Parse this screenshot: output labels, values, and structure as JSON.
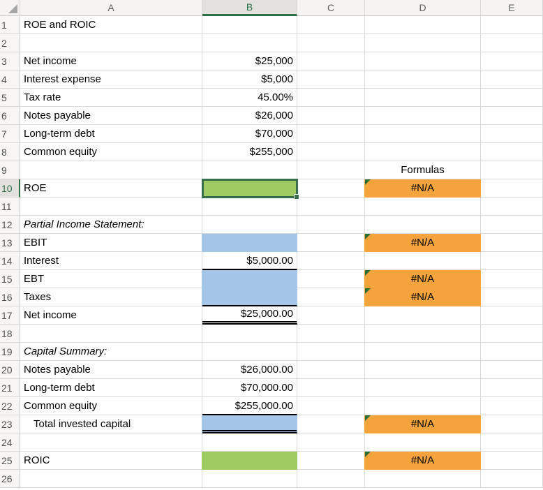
{
  "selection": {
    "active_cell": "B10",
    "active_column": "B",
    "active_row": 10
  },
  "column_headers": [
    "A",
    "B",
    "C",
    "D",
    "E"
  ],
  "row_count": 26,
  "row_headers": [
    "1",
    "2",
    "3",
    "4",
    "5",
    "6",
    "7",
    "8",
    "9",
    "10",
    "11",
    "12",
    "13",
    "14",
    "15",
    "16",
    "17",
    "18",
    "19",
    "20",
    "21",
    "22",
    "23",
    "24",
    "25",
    "26"
  ],
  "colors": {
    "green_fill": "#9FCB63",
    "blue_fill": "#A2C5E8",
    "orange_fill": "#F5A33C",
    "selection_border": "#376F4A",
    "header_selected_green": "#2E7048",
    "error_indicator_green": "#2B6E35",
    "grid_line": "#D9D9D9",
    "accounting_line": "#000000"
  },
  "rows": [
    {
      "n": 1,
      "cells": [
        {
          "col": "A",
          "text": "ROE and ROIC"
        }
      ]
    },
    {
      "n": 3,
      "cells": [
        {
          "col": "A",
          "text": "Net income"
        },
        {
          "col": "B",
          "text": "$25,000",
          "align": "right"
        }
      ]
    },
    {
      "n": 4,
      "cells": [
        {
          "col": "A",
          "text": "Interest expense"
        },
        {
          "col": "B",
          "text": "$5,000",
          "align": "right"
        }
      ]
    },
    {
      "n": 5,
      "cells": [
        {
          "col": "A",
          "text": "Tax rate"
        },
        {
          "col": "B",
          "text": "45.00%",
          "align": "right"
        }
      ]
    },
    {
      "n": 6,
      "cells": [
        {
          "col": "A",
          "text": "Notes payable"
        },
        {
          "col": "B",
          "text": "$26,000",
          "align": "right"
        }
      ]
    },
    {
      "n": 7,
      "cells": [
        {
          "col": "A",
          "text": "Long-term debt"
        },
        {
          "col": "B",
          "text": "$70,000",
          "align": "right"
        }
      ]
    },
    {
      "n": 8,
      "cells": [
        {
          "col": "A",
          "text": "Common equity"
        },
        {
          "col": "B",
          "text": "$255,000",
          "align": "right"
        }
      ]
    },
    {
      "n": 9,
      "cells": [
        {
          "col": "D",
          "text": "Formulas",
          "align": "center"
        }
      ]
    },
    {
      "n": 10,
      "cells": [
        {
          "col": "A",
          "text": "ROE"
        },
        {
          "col": "B",
          "fill": "green",
          "selected": true
        },
        {
          "col": "D",
          "text": "#N/A",
          "align": "center",
          "fill": "orange",
          "error": true
        }
      ]
    },
    {
      "n": 12,
      "cells": [
        {
          "col": "A",
          "text": "Partial Income Statement:",
          "italic": true
        }
      ]
    },
    {
      "n": 13,
      "cells": [
        {
          "col": "A",
          "text": "EBIT"
        },
        {
          "col": "B",
          "fill": "blue"
        },
        {
          "col": "D",
          "text": "#N/A",
          "align": "center",
          "fill": "orange",
          "error": true
        }
      ]
    },
    {
      "n": 14,
      "cells": [
        {
          "col": "A",
          "text": "Interest"
        },
        {
          "col": "B",
          "text": "$5,000.00",
          "align": "right",
          "border": "single"
        }
      ]
    },
    {
      "n": 15,
      "cells": [
        {
          "col": "A",
          "text": "EBT"
        },
        {
          "col": "B",
          "fill": "blue"
        },
        {
          "col": "D",
          "text": "#N/A",
          "align": "center",
          "fill": "orange",
          "error": true
        }
      ]
    },
    {
      "n": 16,
      "cells": [
        {
          "col": "A",
          "text": "Taxes"
        },
        {
          "col": "B",
          "fill": "blue",
          "border": "single"
        },
        {
          "col": "D",
          "text": "#N/A",
          "align": "center",
          "fill": "orange",
          "error": true
        }
      ]
    },
    {
      "n": 17,
      "cells": [
        {
          "col": "A",
          "text": "Net income"
        },
        {
          "col": "B",
          "text": "$25,000.00",
          "align": "right",
          "border": "double"
        }
      ]
    },
    {
      "n": 19,
      "cells": [
        {
          "col": "A",
          "text": "Capital Summary:",
          "italic": true
        }
      ]
    },
    {
      "n": 20,
      "cells": [
        {
          "col": "A",
          "text": "Notes payable"
        },
        {
          "col": "B",
          "text": "$26,000.00",
          "align": "right"
        }
      ]
    },
    {
      "n": 21,
      "cells": [
        {
          "col": "A",
          "text": "Long-term debt"
        },
        {
          "col": "B",
          "text": "$70,000.00",
          "align": "right"
        }
      ]
    },
    {
      "n": 22,
      "cells": [
        {
          "col": "A",
          "text": "Common equity"
        },
        {
          "col": "B",
          "text": "$255,000.00",
          "align": "right",
          "border": "single"
        }
      ]
    },
    {
      "n": 23,
      "cells": [
        {
          "col": "A",
          "text": "Total invested capital",
          "indent": true
        },
        {
          "col": "B",
          "fill": "blue",
          "border": "double"
        },
        {
          "col": "D",
          "text": "#N/A",
          "align": "center",
          "fill": "orange",
          "error": true
        }
      ]
    },
    {
      "n": 25,
      "cells": [
        {
          "col": "A",
          "text": "ROIC"
        },
        {
          "col": "B",
          "fill": "green"
        },
        {
          "col": "D",
          "text": "#N/A",
          "align": "center",
          "fill": "orange",
          "error": true
        }
      ]
    }
  ]
}
